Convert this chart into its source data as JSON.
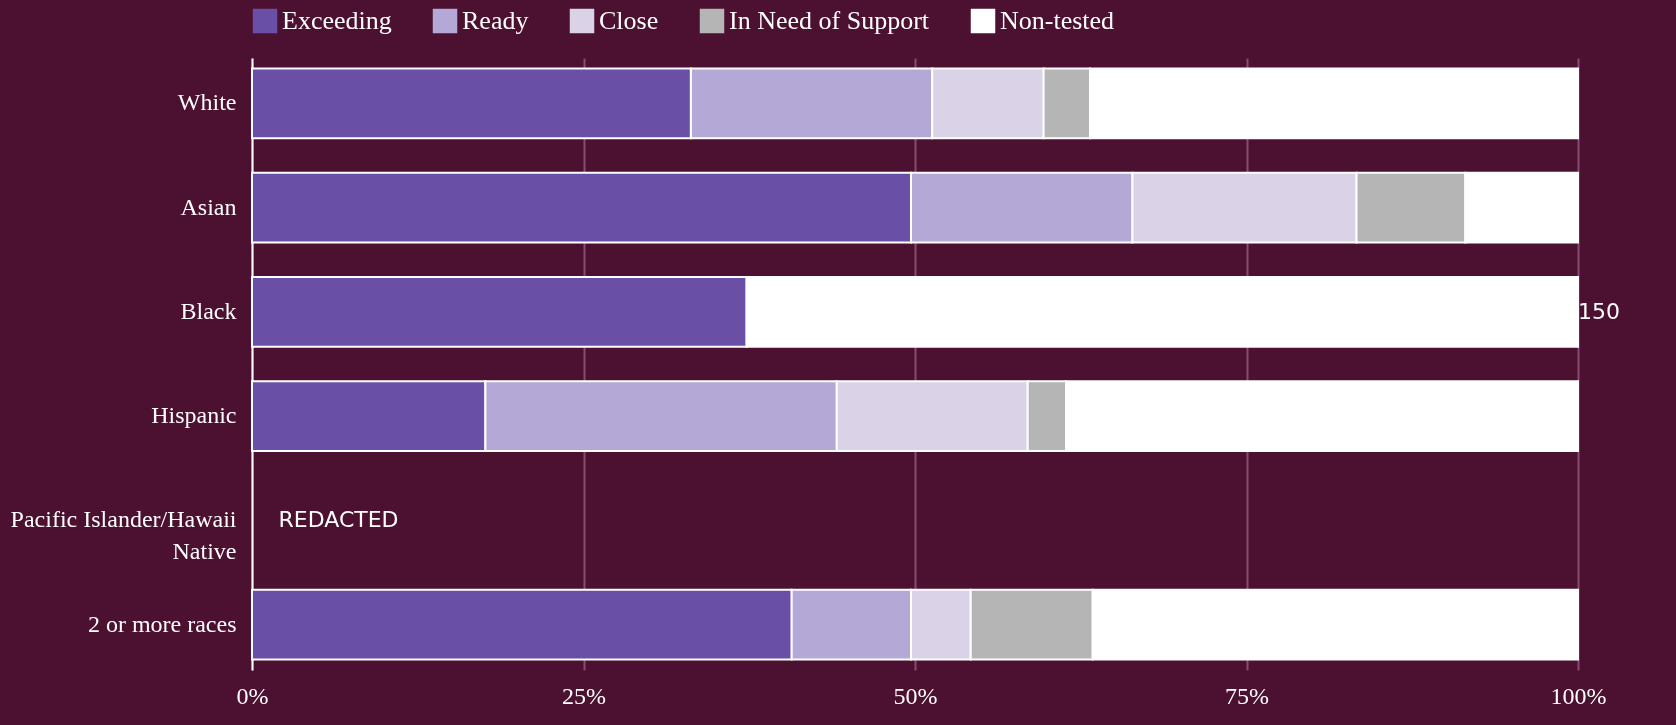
{
  "chart_data": {
    "type": "bar",
    "orientation": "horizontal",
    "stacked": true,
    "categories": [
      "White",
      "Asian",
      "Black",
      "Hispanic",
      "Pacific Islander/Hawaii Native",
      "2 or more races"
    ],
    "series": [
      {
        "name": "Exceeding",
        "color": "#6a4fa6",
        "values": [
          33.1,
          49.7,
          37.3,
          17.6,
          null,
          40.7
        ]
      },
      {
        "name": "Ready",
        "color": "#b3a8d6",
        "values": [
          18.2,
          16.7,
          null,
          26.5,
          null,
          9.0
        ]
      },
      {
        "name": "Close",
        "color": "#dad3e8",
        "values": [
          8.4,
          16.9,
          null,
          14.4,
          null,
          4.5
        ]
      },
      {
        "name": "In Need of Support",
        "color": "#b5b5b5",
        "values": [
          3.5,
          8.2,
          null,
          2.9,
          null,
          9.2
        ]
      },
      {
        "name": "Non-tested",
        "color": "#ffffff",
        "values": [
          36.8,
          8.5,
          62.7,
          38.6,
          null,
          36.6
        ]
      }
    ],
    "xlim": [
      0,
      100
    ],
    "xticks": [
      {
        "value": 0,
        "label": "0%"
      },
      {
        "value": 25,
        "label": "25%"
      },
      {
        "value": 50,
        "label": "50%"
      },
      {
        "value": 75,
        "label": "75%"
      },
      {
        "value": 100,
        "label": "100%"
      }
    ],
    "grid": "x",
    "legend": "top",
    "annotations": [
      "REDACTED",
      "150"
    ]
  }
}
